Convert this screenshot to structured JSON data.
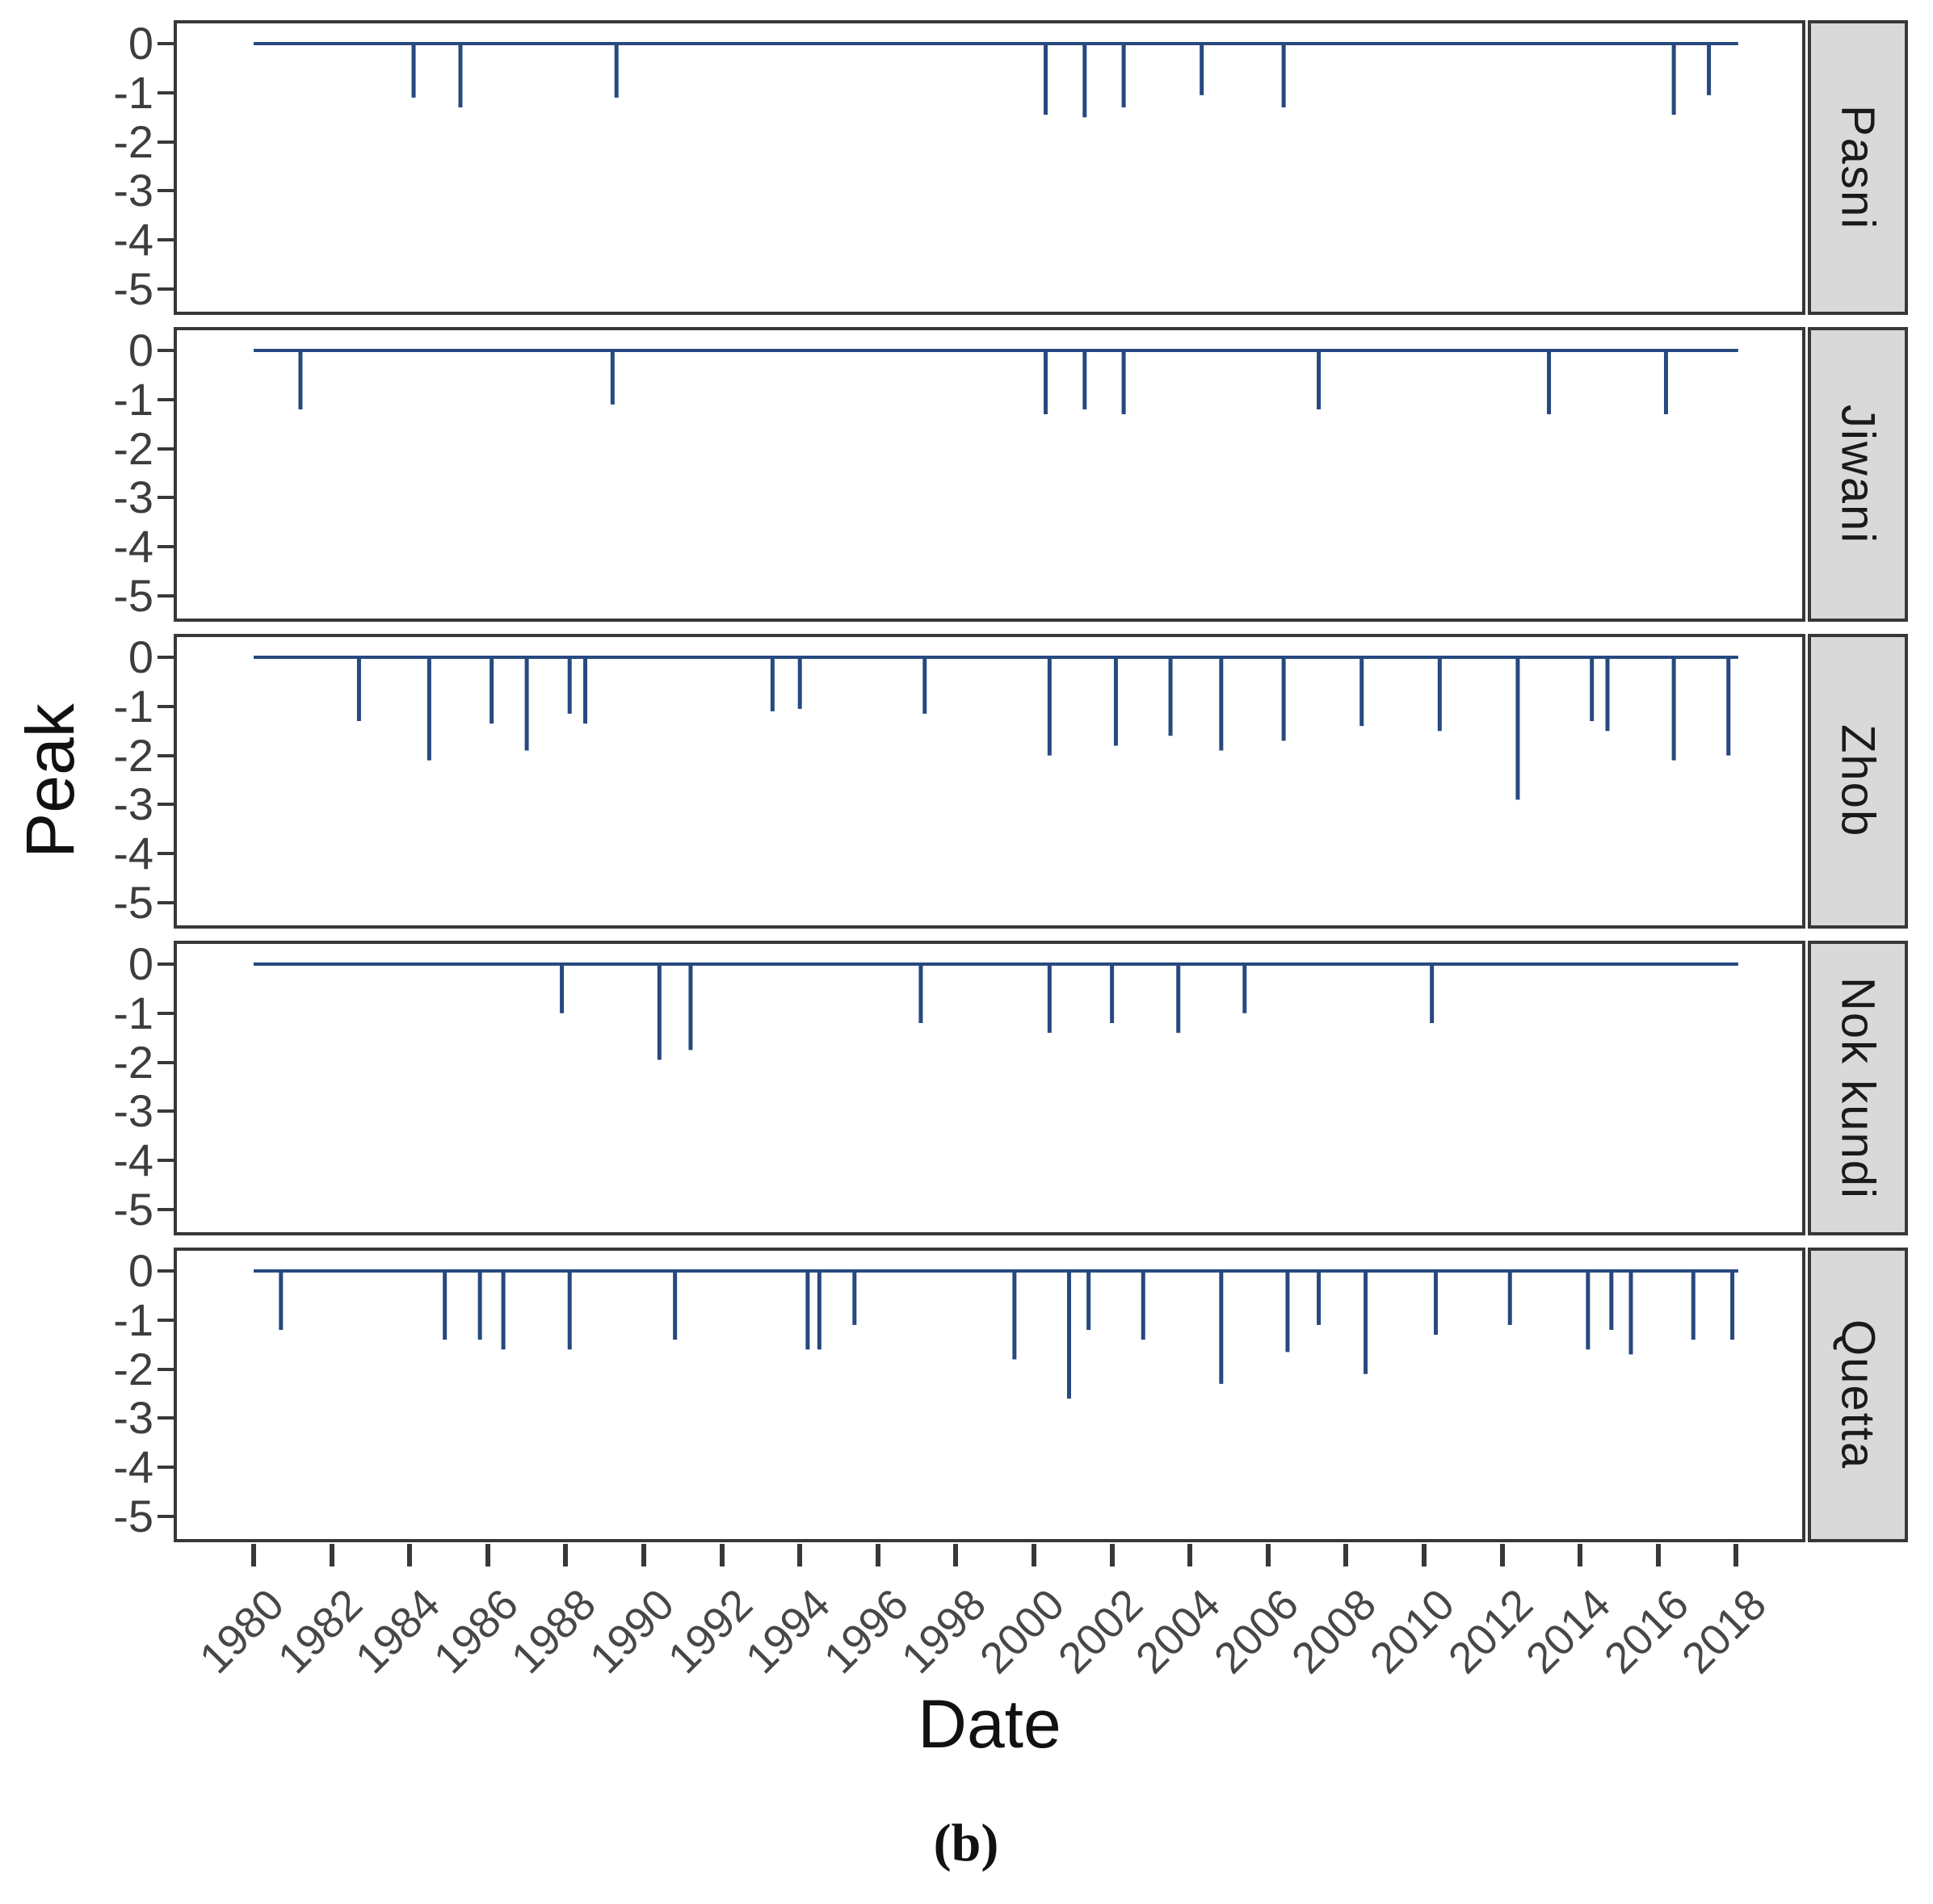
{
  "figure": {
    "ylabel": "Peak",
    "xlabel": "Date",
    "caption": "(b)"
  },
  "colors": {
    "spike": "#27497f",
    "zero_line": "#27497f",
    "panel_border": "#383838",
    "tick_mark": "#383838",
    "y_tick_text": "#3d3d3d",
    "x_tick_text": "#474747",
    "strip_background": "#d9d9d9",
    "strip_text": "#1a1a1a",
    "panel_background": "#ffffff"
  },
  "chart_data": {
    "type": "bar",
    "title": "",
    "xlabel": "Date",
    "ylabel": "Peak",
    "caption": "(b)",
    "legend": "none",
    "grid": "off",
    "facet_position": "right",
    "x_axis": {
      "tick_years": [
        1980,
        1982,
        1984,
        1986,
        1988,
        1990,
        1992,
        1994,
        1996,
        1998,
        2000,
        2002,
        2004,
        2006,
        2008,
        2010,
        2012,
        2014,
        2016,
        2018
      ],
      "range": [
        1977.9,
        2019.8
      ],
      "label_angle_deg": 45
    },
    "y_axis": {
      "tick_labels": [
        "0",
        "-1",
        "-2",
        "-3",
        "-4",
        "-5"
      ],
      "tick_values": [
        0,
        -1,
        -2,
        -3,
        -4,
        -5
      ],
      "range": [
        -5.5,
        0.5
      ]
    },
    "baseline": {
      "value": 0,
      "start_year": 1980.0,
      "end_year": 2018.05
    },
    "panels": [
      {
        "name": "Pasni",
        "events": [
          {
            "year": 1984.1,
            "peak": -1.1
          },
          {
            "year": 1985.3,
            "peak": -1.3
          },
          {
            "year": 1989.3,
            "peak": -1.1
          },
          {
            "year": 2000.3,
            "peak": -1.45
          },
          {
            "year": 2001.3,
            "peak": -1.5
          },
          {
            "year": 2002.3,
            "peak": -1.3
          },
          {
            "year": 2004.3,
            "peak": -1.05
          },
          {
            "year": 2006.4,
            "peak": -1.3
          },
          {
            "year": 2016.4,
            "peak": -1.45
          },
          {
            "year": 2017.3,
            "peak": -1.05
          }
        ]
      },
      {
        "name": "Jiwani",
        "events": [
          {
            "year": 1981.2,
            "peak": -1.2
          },
          {
            "year": 1989.2,
            "peak": -1.1
          },
          {
            "year": 2000.3,
            "peak": -1.3
          },
          {
            "year": 2001.3,
            "peak": -1.2
          },
          {
            "year": 2002.3,
            "peak": -1.3
          },
          {
            "year": 2007.3,
            "peak": -1.2
          },
          {
            "year": 2013.2,
            "peak": -1.3
          },
          {
            "year": 2016.2,
            "peak": -1.3
          }
        ]
      },
      {
        "name": "Zhob",
        "events": [
          {
            "year": 1982.7,
            "peak": -1.3
          },
          {
            "year": 1984.5,
            "peak": -2.1
          },
          {
            "year": 1986.1,
            "peak": -1.35
          },
          {
            "year": 1987.0,
            "peak": -1.9
          },
          {
            "year": 1988.1,
            "peak": -1.15
          },
          {
            "year": 1988.5,
            "peak": -1.35
          },
          {
            "year": 1993.3,
            "peak": -1.1
          },
          {
            "year": 1994.0,
            "peak": -1.05
          },
          {
            "year": 1997.2,
            "peak": -1.15
          },
          {
            "year": 2000.4,
            "peak": -2.0
          },
          {
            "year": 2002.1,
            "peak": -1.8
          },
          {
            "year": 2003.5,
            "peak": -1.6
          },
          {
            "year": 2004.8,
            "peak": -1.9
          },
          {
            "year": 2006.4,
            "peak": -1.7
          },
          {
            "year": 2008.4,
            "peak": -1.4
          },
          {
            "year": 2010.4,
            "peak": -1.5
          },
          {
            "year": 2012.4,
            "peak": -2.9
          },
          {
            "year": 2014.3,
            "peak": -1.3
          },
          {
            "year": 2014.7,
            "peak": -1.5
          },
          {
            "year": 2016.4,
            "peak": -2.1
          },
          {
            "year": 2017.8,
            "peak": -2.0
          }
        ]
      },
      {
        "name": "Nok kundi",
        "events": [
          {
            "year": 1987.9,
            "peak": -1.0
          },
          {
            "year": 1990.4,
            "peak": -1.95
          },
          {
            "year": 1991.2,
            "peak": -1.75
          },
          {
            "year": 1997.1,
            "peak": -1.2
          },
          {
            "year": 2000.4,
            "peak": -1.4
          },
          {
            "year": 2002.0,
            "peak": -1.2
          },
          {
            "year": 2003.7,
            "peak": -1.4
          },
          {
            "year": 2005.4,
            "peak": -1.0
          },
          {
            "year": 2010.2,
            "peak": -1.2
          }
        ]
      },
      {
        "name": "Quetta",
        "events": [
          {
            "year": 1980.7,
            "peak": -1.2
          },
          {
            "year": 1984.9,
            "peak": -1.4
          },
          {
            "year": 1985.8,
            "peak": -1.4
          },
          {
            "year": 1986.4,
            "peak": -1.6
          },
          {
            "year": 1988.1,
            "peak": -1.6
          },
          {
            "year": 1990.8,
            "peak": -1.4
          },
          {
            "year": 1994.2,
            "peak": -1.6
          },
          {
            "year": 1994.5,
            "peak": -1.6
          },
          {
            "year": 1995.4,
            "peak": -1.1
          },
          {
            "year": 1999.5,
            "peak": -1.8
          },
          {
            "year": 2000.9,
            "peak": -2.6
          },
          {
            "year": 2001.4,
            "peak": -1.2
          },
          {
            "year": 2002.8,
            "peak": -1.4
          },
          {
            "year": 2004.8,
            "peak": -2.3
          },
          {
            "year": 2006.5,
            "peak": -1.65
          },
          {
            "year": 2007.3,
            "peak": -1.1
          },
          {
            "year": 2008.5,
            "peak": -2.1
          },
          {
            "year": 2010.3,
            "peak": -1.3
          },
          {
            "year": 2012.2,
            "peak": -1.1
          },
          {
            "year": 2014.2,
            "peak": -1.6
          },
          {
            "year": 2014.8,
            "peak": -1.2
          },
          {
            "year": 2015.3,
            "peak": -1.7
          },
          {
            "year": 2016.9,
            "peak": -1.4
          },
          {
            "year": 2017.9,
            "peak": -1.4
          }
        ]
      }
    ]
  }
}
